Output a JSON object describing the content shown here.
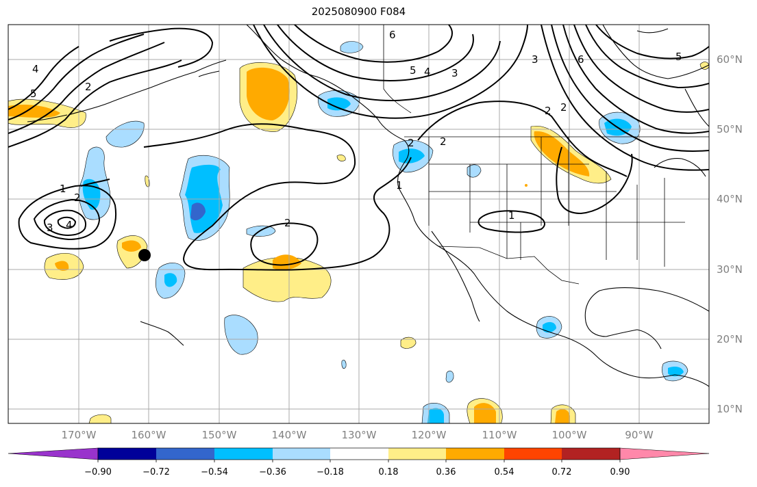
{
  "title": "2025080900 F084",
  "lat_labels": [
    "60°N",
    "50°N",
    "40°N",
    "30°N",
    "20°N",
    "10°N"
  ],
  "lon_labels": [
    "170°W",
    "160°W",
    "150°W",
    "140°W",
    "130°W",
    "120°W",
    "110°W",
    "100°W",
    "90°W"
  ],
  "colorbar": {
    "colors": [
      "#9933cc",
      "#000099",
      "#3366cc",
      "#00bfff",
      "#aaddff",
      "#ffffff",
      "#ffee88",
      "#ffaa00",
      "#ff4400",
      "#b22222",
      "#ff88aa"
    ],
    "tick_labels": [
      "−0.90",
      "−0.72",
      "−0.54",
      "−0.36",
      "−0.18",
      "0.18",
      "0.36",
      "0.54",
      "0.72",
      "0.90"
    ]
  },
  "contour_labels": [
    "6",
    "5",
    "4",
    "3",
    "3",
    "6",
    "5",
    "2",
    "2",
    "5",
    "4",
    "2",
    "1",
    "3",
    "4",
    "1",
    "2",
    "2",
    "2",
    "1",
    "2"
  ],
  "marker": "storm-position"
}
